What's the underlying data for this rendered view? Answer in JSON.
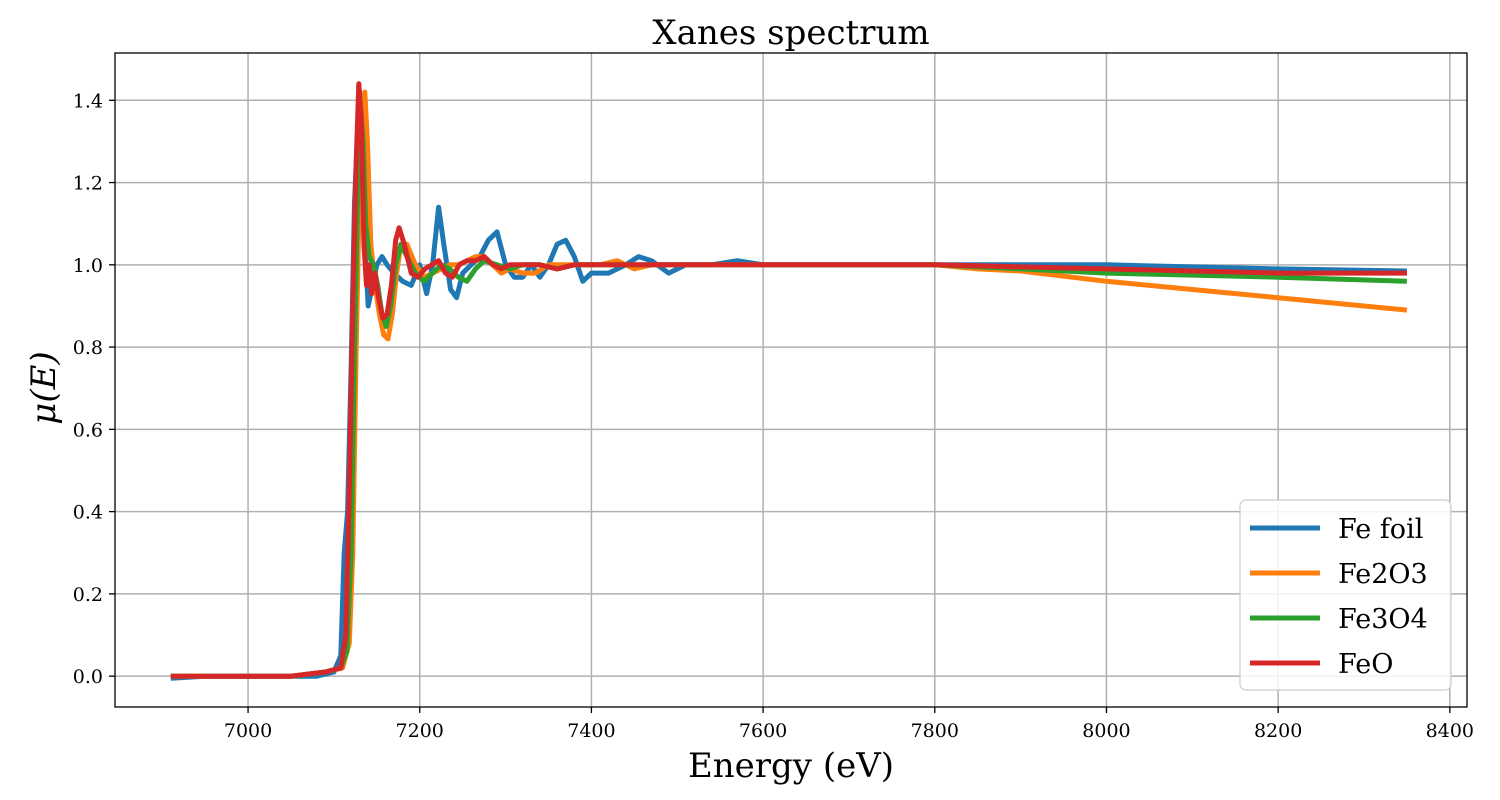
{
  "chart_data": {
    "type": "line",
    "title": "Xanes spectrum",
    "xlabel": "Energy (eV)",
    "ylabel": "μ(E)",
    "xlim": [
      6845,
      8420
    ],
    "ylim": [
      -0.075,
      1.515
    ],
    "xticks": [
      7000,
      7200,
      7400,
      7600,
      7800,
      8000,
      8200,
      8400
    ],
    "yticks": [
      0.0,
      0.2,
      0.4,
      0.6,
      0.8,
      1.0,
      1.2,
      1.4
    ],
    "ytick_labels": [
      "0.0",
      "0.2",
      "0.4",
      "0.6",
      "0.8",
      "1.0",
      "1.2",
      "1.4"
    ],
    "grid": true,
    "legend_position": "lower-right",
    "series": [
      {
        "name": "Fe foil",
        "color": "#1f77b4",
        "points": [
          [
            6910,
            -0.005
          ],
          [
            6950,
            0.0
          ],
          [
            7000,
            0.0
          ],
          [
            7050,
            0.0
          ],
          [
            7080,
            0.0
          ],
          [
            7100,
            0.01
          ],
          [
            7108,
            0.05
          ],
          [
            7112,
            0.3
          ],
          [
            7116,
            0.4
          ],
          [
            7120,
            0.75
          ],
          [
            7124,
            1.15
          ],
          [
            7127,
            1.3
          ],
          [
            7130,
            1.42
          ],
          [
            7133,
            1.35
          ],
          [
            7136,
            1.05
          ],
          [
            7140,
            0.9
          ],
          [
            7145,
            0.95
          ],
          [
            7150,
            1.0
          ],
          [
            7156,
            1.02
          ],
          [
            7162,
            1.0
          ],
          [
            7170,
            0.98
          ],
          [
            7180,
            0.96
          ],
          [
            7190,
            0.95
          ],
          [
            7200,
            1.0
          ],
          [
            7208,
            0.93
          ],
          [
            7215,
            1.0
          ],
          [
            7222,
            1.14
          ],
          [
            7228,
            1.05
          ],
          [
            7236,
            0.94
          ],
          [
            7243,
            0.92
          ],
          [
            7250,
            0.98
          ],
          [
            7260,
            1.0
          ],
          [
            7270,
            1.02
          ],
          [
            7280,
            1.06
          ],
          [
            7290,
            1.08
          ],
          [
            7300,
            1.0
          ],
          [
            7310,
            0.97
          ],
          [
            7320,
            0.97
          ],
          [
            7330,
            1.0
          ],
          [
            7340,
            0.97
          ],
          [
            7350,
            1.0
          ],
          [
            7360,
            1.05
          ],
          [
            7370,
            1.06
          ],
          [
            7380,
            1.02
          ],
          [
            7390,
            0.96
          ],
          [
            7400,
            0.98
          ],
          [
            7420,
            0.98
          ],
          [
            7440,
            1.0
          ],
          [
            7455,
            1.02
          ],
          [
            7470,
            1.01
          ],
          [
            7490,
            0.98
          ],
          [
            7510,
            1.0
          ],
          [
            7540,
            1.0
          ],
          [
            7570,
            1.01
          ],
          [
            7600,
            1.0
          ],
          [
            7650,
            1.0
          ],
          [
            7700,
            1.0
          ],
          [
            7800,
            1.0
          ],
          [
            7900,
            1.0
          ],
          [
            8000,
            1.0
          ],
          [
            8100,
            0.995
          ],
          [
            8200,
            0.99
          ],
          [
            8350,
            0.985
          ]
        ]
      },
      {
        "name": "Fe2O3",
        "color": "#ff7f0e",
        "points": [
          [
            6910,
            0.0
          ],
          [
            6950,
            0.0
          ],
          [
            7000,
            0.0
          ],
          [
            7050,
            0.0
          ],
          [
            7090,
            0.01
          ],
          [
            7110,
            0.02
          ],
          [
            7118,
            0.08
          ],
          [
            7122,
            0.3
          ],
          [
            7126,
            0.8
          ],
          [
            7130,
            1.2
          ],
          [
            7133,
            1.38
          ],
          [
            7136,
            1.42
          ],
          [
            7139,
            1.3
          ],
          [
            7143,
            1.05
          ],
          [
            7148,
            0.95
          ],
          [
            7153,
            0.88
          ],
          [
            7158,
            0.83
          ],
          [
            7163,
            0.82
          ],
          [
            7168,
            0.88
          ],
          [
            7173,
            0.98
          ],
          [
            7178,
            1.05
          ],
          [
            7185,
            1.05
          ],
          [
            7195,
            1.0
          ],
          [
            7205,
            0.97
          ],
          [
            7215,
            0.98
          ],
          [
            7225,
            0.99
          ],
          [
            7235,
            1.0
          ],
          [
            7245,
            1.0
          ],
          [
            7255,
            1.01
          ],
          [
            7265,
            1.02
          ],
          [
            7275,
            1.02
          ],
          [
            7285,
            1.0
          ],
          [
            7295,
            0.98
          ],
          [
            7305,
            0.99
          ],
          [
            7320,
            0.98
          ],
          [
            7335,
            0.98
          ],
          [
            7350,
            1.0
          ],
          [
            7380,
            1.0
          ],
          [
            7410,
            1.0
          ],
          [
            7430,
            1.01
          ],
          [
            7450,
            0.99
          ],
          [
            7470,
            1.0
          ],
          [
            7500,
            1.0
          ],
          [
            7600,
            1.0
          ],
          [
            7700,
            1.0
          ],
          [
            7800,
            1.0
          ],
          [
            7850,
            0.99
          ],
          [
            7900,
            0.985
          ],
          [
            8000,
            0.96
          ],
          [
            8100,
            0.94
          ],
          [
            8200,
            0.92
          ],
          [
            8350,
            0.89
          ]
        ]
      },
      {
        "name": "Fe3O4",
        "color": "#2ca02c",
        "points": [
          [
            6910,
            0.0
          ],
          [
            6950,
            0.0
          ],
          [
            7000,
            0.0
          ],
          [
            7050,
            0.0
          ],
          [
            7090,
            0.01
          ],
          [
            7108,
            0.02
          ],
          [
            7115,
            0.06
          ],
          [
            7120,
            0.3
          ],
          [
            7124,
            0.8
          ],
          [
            7128,
            1.2
          ],
          [
            7131,
            1.38
          ],
          [
            7134,
            1.3
          ],
          [
            7137,
            1.1
          ],
          [
            7141,
            1.02
          ],
          [
            7146,
            1.0
          ],
          [
            7151,
            0.95
          ],
          [
            7156,
            0.88
          ],
          [
            7161,
            0.85
          ],
          [
            7166,
            0.9
          ],
          [
            7172,
            1.0
          ],
          [
            7178,
            1.05
          ],
          [
            7185,
            1.02
          ],
          [
            7195,
            0.98
          ],
          [
            7205,
            0.96
          ],
          [
            7215,
            0.98
          ],
          [
            7225,
            1.0
          ],
          [
            7235,
            0.99
          ],
          [
            7245,
            0.97
          ],
          [
            7255,
            0.96
          ],
          [
            7265,
            0.99
          ],
          [
            7275,
            1.01
          ],
          [
            7290,
            1.0
          ],
          [
            7305,
            0.99
          ],
          [
            7320,
            1.0
          ],
          [
            7340,
            1.0
          ],
          [
            7360,
            0.99
          ],
          [
            7380,
            1.0
          ],
          [
            7400,
            1.0
          ],
          [
            7450,
            1.0
          ],
          [
            7500,
            1.0
          ],
          [
            7600,
            1.0
          ],
          [
            7700,
            1.0
          ],
          [
            7800,
            1.0
          ],
          [
            7900,
            0.99
          ],
          [
            8000,
            0.98
          ],
          [
            8100,
            0.975
          ],
          [
            8200,
            0.97
          ],
          [
            8350,
            0.96
          ]
        ]
      },
      {
        "name": "FeO",
        "color": "#d62728",
        "points": [
          [
            6910,
            0.0
          ],
          [
            6950,
            0.0
          ],
          [
            7000,
            0.0
          ],
          [
            7050,
            0.0
          ],
          [
            7090,
            0.01
          ],
          [
            7108,
            0.02
          ],
          [
            7114,
            0.1
          ],
          [
            7118,
            0.45
          ],
          [
            7122,
            0.9
          ],
          [
            7126,
            1.25
          ],
          [
            7129,
            1.44
          ],
          [
            7132,
            1.35
          ],
          [
            7135,
            1.05
          ],
          [
            7138,
            0.95
          ],
          [
            7141,
            1.0
          ],
          [
            7144,
            0.93
          ],
          [
            7148,
            0.98
          ],
          [
            7152,
            0.92
          ],
          [
            7157,
            0.87
          ],
          [
            7162,
            0.88
          ],
          [
            7167,
            0.95
          ],
          [
            7172,
            1.06
          ],
          [
            7176,
            1.09
          ],
          [
            7182,
            1.05
          ],
          [
            7190,
            0.98
          ],
          [
            7198,
            0.97
          ],
          [
            7206,
            0.99
          ],
          [
            7214,
            1.0
          ],
          [
            7222,
            1.01
          ],
          [
            7230,
            0.98
          ],
          [
            7238,
            0.97
          ],
          [
            7246,
            1.0
          ],
          [
            7255,
            1.01
          ],
          [
            7265,
            1.01
          ],
          [
            7275,
            1.02
          ],
          [
            7285,
            1.0
          ],
          [
            7295,
            0.99
          ],
          [
            7305,
            1.0
          ],
          [
            7320,
            1.0
          ],
          [
            7340,
            1.0
          ],
          [
            7360,
            0.99
          ],
          [
            7380,
            1.0
          ],
          [
            7400,
            1.0
          ],
          [
            7450,
            1.0
          ],
          [
            7500,
            1.0
          ],
          [
            7600,
            1.0
          ],
          [
            7700,
            1.0
          ],
          [
            7800,
            1.0
          ],
          [
            7900,
            0.995
          ],
          [
            8000,
            0.99
          ],
          [
            8100,
            0.985
          ],
          [
            8200,
            0.98
          ],
          [
            8350,
            0.98
          ]
        ]
      }
    ]
  }
}
